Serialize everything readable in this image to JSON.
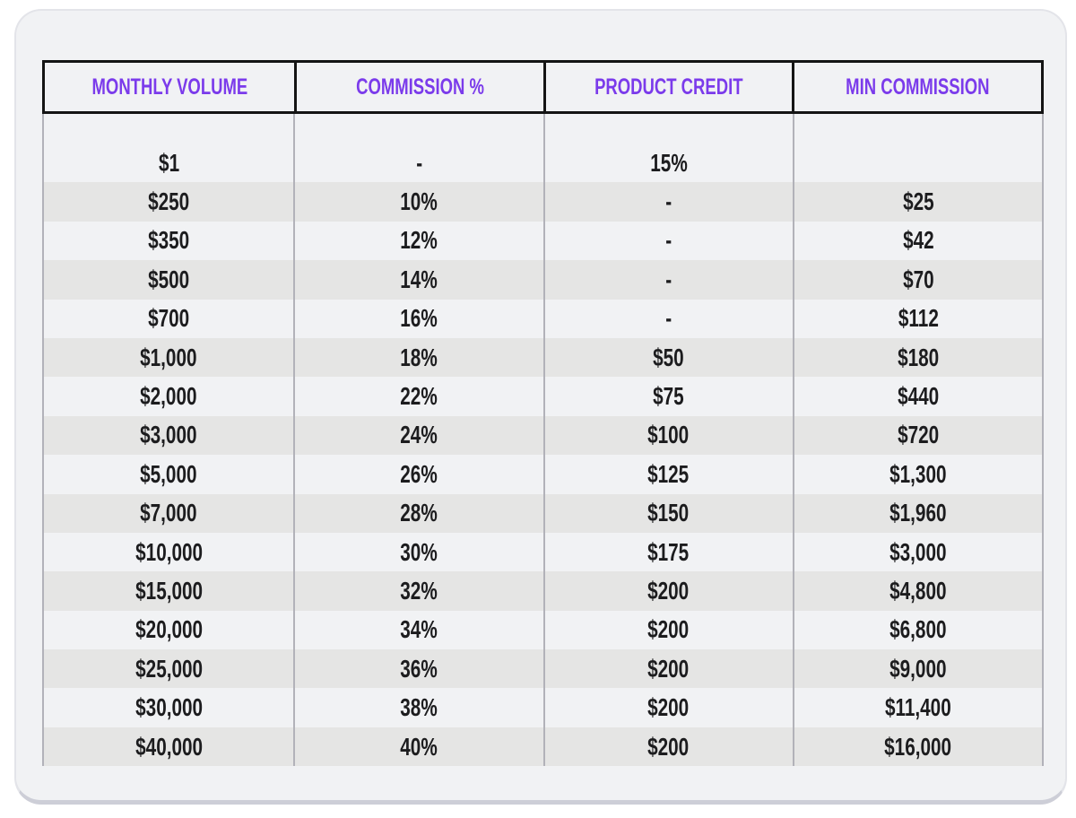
{
  "chart_data": {
    "type": "table",
    "title": "",
    "columns": [
      "MONTHLY VOLUME",
      "COMMISSION %",
      "PRODUCT CREDIT",
      "MIN COMMISSION"
    ],
    "rows": [
      [
        "$1",
        "-",
        "15%",
        ""
      ],
      [
        "$250",
        "10%",
        "-",
        "$25"
      ],
      [
        "$350",
        "12%",
        "-",
        "$42"
      ],
      [
        "$500",
        "14%",
        "-",
        "$70"
      ],
      [
        "$700",
        "16%",
        "-",
        "$112"
      ],
      [
        "$1,000",
        "18%",
        "$50",
        "$180"
      ],
      [
        "$2,000",
        "22%",
        "$75",
        "$440"
      ],
      [
        "$3,000",
        "24%",
        "$100",
        "$720"
      ],
      [
        "$5,000",
        "26%",
        "$125",
        "$1,300"
      ],
      [
        "$7,000",
        "28%",
        "$150",
        "$1,960"
      ],
      [
        "$10,000",
        "30%",
        "$175",
        "$3,000"
      ],
      [
        "$15,000",
        "32%",
        "$200",
        "$4,800"
      ],
      [
        "$20,000",
        "34%",
        "$200",
        "$6,800"
      ],
      [
        "$25,000",
        "36%",
        "$200",
        "$9,000"
      ],
      [
        "$30,000",
        "38%",
        "$200",
        "$11,400"
      ],
      [
        "$40,000",
        "40%",
        "$200",
        "$16,000"
      ]
    ],
    "layout_hints": {
      "header_text_color": "#7b3beb",
      "header_border_color": "#141414",
      "body_text_color": "#1c1c1e",
      "alt_row_color": "#e5e5e4",
      "card_background": "#f1f2f4",
      "page_background": "#ffffff",
      "grid": "vertical-separators-only",
      "zebra_striping": "odd-rows-shaded-starting-second-row"
    }
  }
}
